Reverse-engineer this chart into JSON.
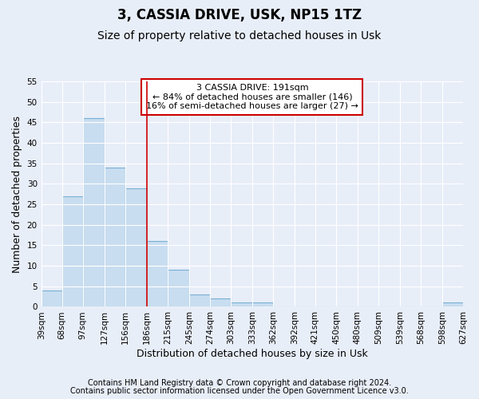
{
  "title": "3, CASSIA DRIVE, USK, NP15 1TZ",
  "subtitle": "Size of property relative to detached houses in Usk",
  "xlabel": "Distribution of detached houses by size in Usk",
  "ylabel": "Number of detached properties",
  "bins": [
    39,
    68,
    97,
    127,
    156,
    186,
    215,
    245,
    274,
    303,
    333,
    362,
    392,
    421,
    450,
    480,
    509,
    539,
    568,
    598,
    627
  ],
  "bin_labels": [
    "39sqm",
    "68sqm",
    "97sqm",
    "127sqm",
    "156sqm",
    "186sqm",
    "215sqm",
    "245sqm",
    "274sqm",
    "303sqm",
    "333sqm",
    "362sqm",
    "392sqm",
    "421sqm",
    "450sqm",
    "480sqm",
    "509sqm",
    "539sqm",
    "568sqm",
    "598sqm",
    "627sqm"
  ],
  "values": [
    4,
    27,
    46,
    34,
    29,
    16,
    9,
    3,
    2,
    1,
    1,
    0,
    0,
    0,
    0,
    0,
    0,
    0,
    0,
    1
  ],
  "bar_color": "#c8ddf0",
  "bar_edge_color": "#7aafd4",
  "red_line_x": 186,
  "ylim": [
    0,
    55
  ],
  "yticks": [
    0,
    5,
    10,
    15,
    20,
    25,
    30,
    35,
    40,
    45,
    50,
    55
  ],
  "annotation_line1": "3 CASSIA DRIVE: 191sqm",
  "annotation_line2": "← 84% of detached houses are smaller (146)",
  "annotation_line3": "16% of semi-detached houses are larger (27) →",
  "annotation_box_color": "#ffffff",
  "annotation_box_edge_color": "#cc0000",
  "footnote1": "Contains HM Land Registry data © Crown copyright and database right 2024.",
  "footnote2": "Contains public sector information licensed under the Open Government Licence v3.0.",
  "background_color": "#e8eef8",
  "grid_color": "#ffffff",
  "title_fontsize": 12,
  "subtitle_fontsize": 10,
  "axis_label_fontsize": 9,
  "tick_fontsize": 7.5,
  "annotation_fontsize": 8,
  "footnote_fontsize": 7
}
